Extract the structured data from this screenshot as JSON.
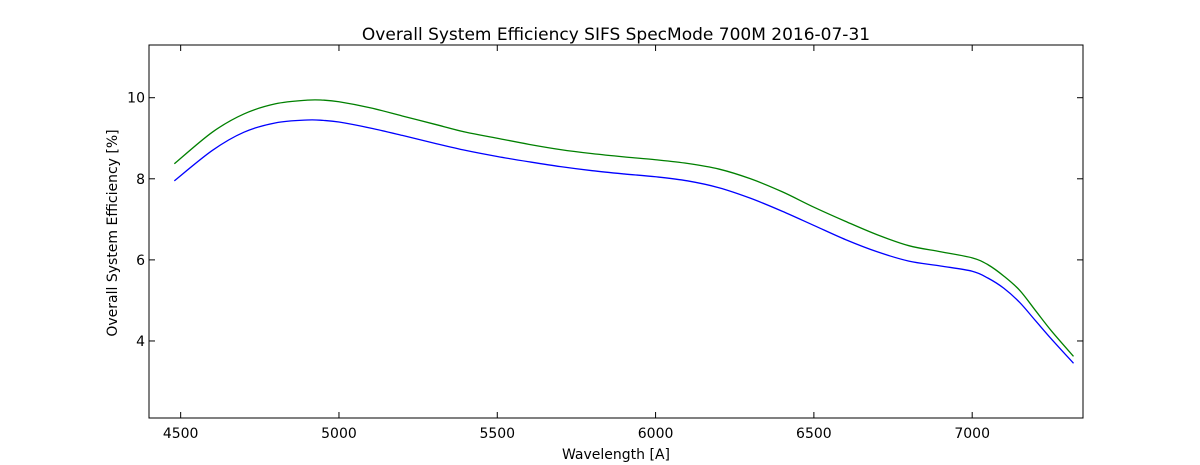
{
  "chart_data": {
    "type": "line",
    "title": "Overall System Efficiency SIFS SpecMode 700M 2016-07-31",
    "xlabel": "Wavelength [A]",
    "ylabel": "Overall System Efficiency [%]",
    "xlim": [
      4400,
      7350
    ],
    "ylim": [
      2.1,
      11.3
    ],
    "xticks": [
      4500,
      5000,
      5500,
      6000,
      6500,
      7000
    ],
    "xtick_labels": [
      "4500",
      "5000",
      "5500",
      "6000",
      "6500",
      "7000"
    ],
    "yticks": [
      4,
      6,
      8,
      10
    ],
    "ytick_labels": [
      "4",
      "6",
      "8",
      "10"
    ],
    "grid": false,
    "series": [
      {
        "color": "#0000ff",
        "x": [
          4480,
          4600,
          4700,
          4800,
          4900,
          4950,
          5000,
          5100,
          5200,
          5300,
          5400,
          5500,
          5600,
          5700,
          5800,
          5900,
          6000,
          6100,
          6200,
          6300,
          6400,
          6500,
          6600,
          6700,
          6800,
          6900,
          7000,
          7050,
          7100,
          7150,
          7200,
          7250,
          7320
        ],
        "y": [
          7.95,
          8.7,
          9.15,
          9.38,
          9.45,
          9.44,
          9.4,
          9.25,
          9.07,
          8.88,
          8.7,
          8.55,
          8.42,
          8.3,
          8.2,
          8.12,
          8.05,
          7.95,
          7.78,
          7.52,
          7.2,
          6.85,
          6.5,
          6.2,
          5.97,
          5.85,
          5.72,
          5.55,
          5.3,
          4.95,
          4.5,
          4.05,
          3.45
        ]
      },
      {
        "color": "#008000",
        "x": [
          4480,
          4600,
          4700,
          4800,
          4900,
          4950,
          5000,
          5100,
          5200,
          5300,
          5400,
          5500,
          5600,
          5700,
          5800,
          5900,
          6000,
          6100,
          6200,
          6300,
          6400,
          6500,
          6600,
          6700,
          6800,
          6900,
          7000,
          7050,
          7100,
          7150,
          7200,
          7250,
          7320
        ],
        "y": [
          8.37,
          9.15,
          9.6,
          9.85,
          9.94,
          9.94,
          9.9,
          9.75,
          9.55,
          9.35,
          9.15,
          9.0,
          8.85,
          8.72,
          8.62,
          8.54,
          8.47,
          8.38,
          8.24,
          8.0,
          7.68,
          7.3,
          6.95,
          6.62,
          6.35,
          6.2,
          6.05,
          5.88,
          5.6,
          5.25,
          4.75,
          4.25,
          3.62
        ]
      }
    ]
  }
}
